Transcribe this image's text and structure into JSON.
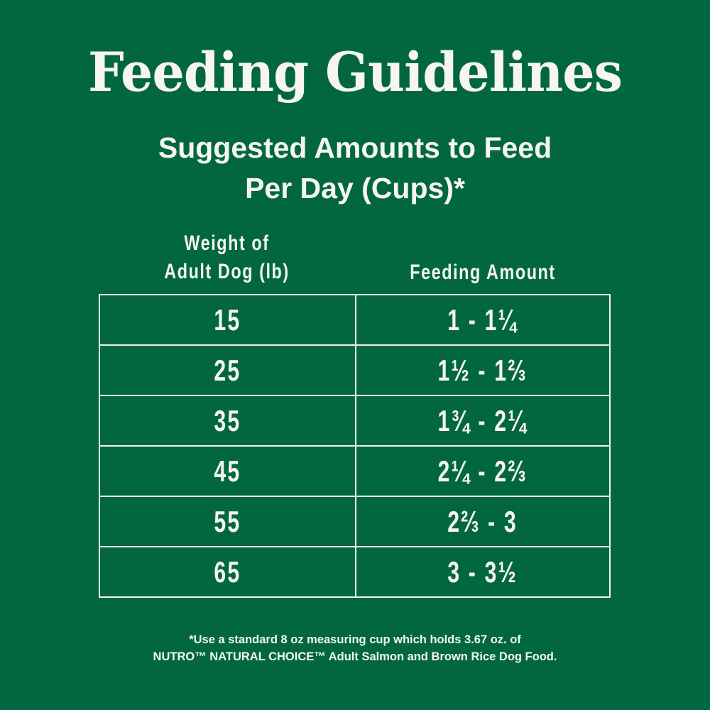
{
  "title": "Feeding Guidelines",
  "subtitle": {
    "line1": "Suggested Amounts to Feed",
    "line2": "Per Day (Cups)*"
  },
  "table": {
    "headers": {
      "weight_line1": "Weight of",
      "weight_line2": "Adult Dog (lb)",
      "amount": "Feeding Amount"
    },
    "rows": [
      {
        "weight": "15",
        "amount": "1 - 1¼"
      },
      {
        "weight": "25",
        "amount": "1½ - 1⅔"
      },
      {
        "weight": "35",
        "amount": "1¾ - 2¼"
      },
      {
        "weight": "45",
        "amount": "2¼ - 2⅔"
      },
      {
        "weight": "55",
        "amount": "2⅔ - 3"
      },
      {
        "weight": "65",
        "amount": "3 - 3½"
      }
    ]
  },
  "footnote": {
    "line1": "*Use a standard 8 oz measuring cup which holds 3.67 oz. of",
    "line2": "NUTRO™ NATURAL CHOICE™ Adult Salmon and Brown Rice Dog Food."
  },
  "colors": {
    "background": "#026741",
    "text": "#f6f5ef",
    "table_border": "#f1f0ea"
  }
}
